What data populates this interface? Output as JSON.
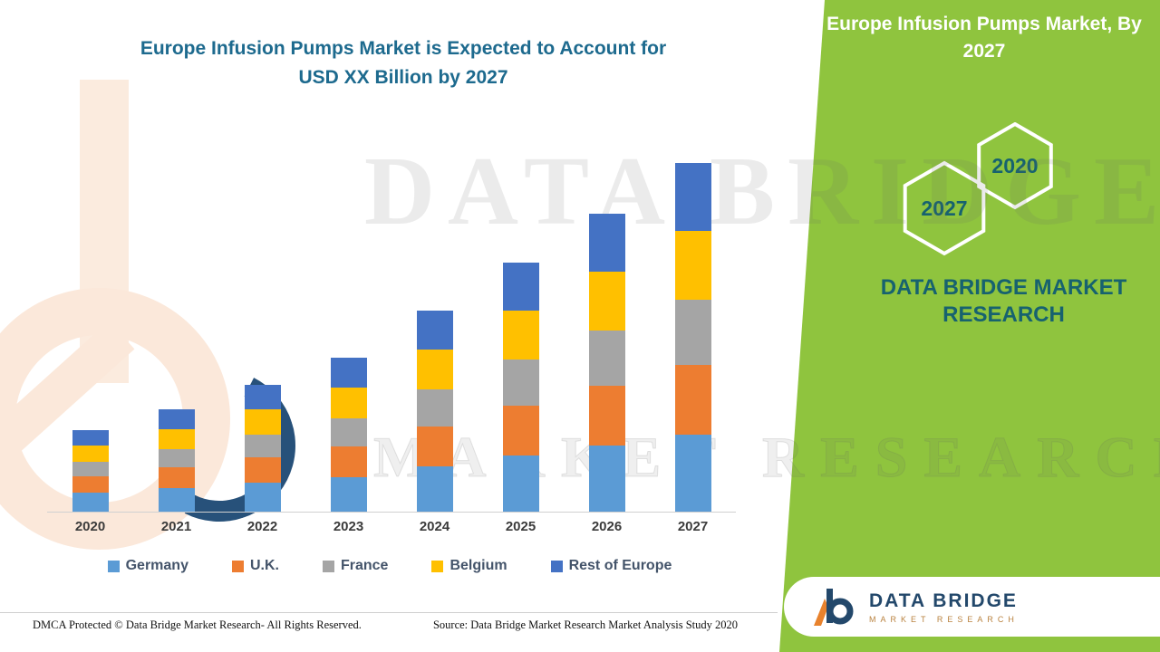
{
  "main": {
    "title": "Europe Infusion Pumps Market is Expected to Account for USD XX Billion by 2027"
  },
  "chart_data": {
    "type": "bar",
    "stacked": true,
    "title": "Europe Infusion Pumps Market is Expected to Account for USD XX Billion by 2027",
    "categories": [
      "2020",
      "2021",
      "2022",
      "2023",
      "2024",
      "2025",
      "2026",
      "2027"
    ],
    "series": [
      {
        "name": "Germany",
        "color": "#5B9BD5",
        "values": [
          0.21,
          0.26,
          0.32,
          0.38,
          0.5,
          0.62,
          0.73,
          0.85
        ]
      },
      {
        "name": "U.K.",
        "color": "#ED7D31",
        "values": [
          0.18,
          0.23,
          0.28,
          0.34,
          0.44,
          0.55,
          0.66,
          0.77
        ]
      },
      {
        "name": "France",
        "color": "#A5A5A5",
        "values": [
          0.16,
          0.2,
          0.25,
          0.31,
          0.41,
          0.51,
          0.61,
          0.72
        ]
      },
      {
        "name": "Belgium",
        "color": "#FFC000",
        "values": [
          0.18,
          0.22,
          0.28,
          0.34,
          0.44,
          0.54,
          0.65,
          0.76
        ]
      },
      {
        "name": "Rest of Europe",
        "color": "#4472C4",
        "values": [
          0.17,
          0.22,
          0.27,
          0.33,
          0.43,
          0.53,
          0.64,
          0.75
        ]
      }
    ],
    "xlabel": "",
    "ylabel": "",
    "ylim": [
      0,
      3.9
    ],
    "y_axis_visible": false,
    "value_labels_visible": false,
    "values_are_estimates": true,
    "units": "relative index (actual USD values masked as XX in source)",
    "legend_position": "bottom",
    "grid": false
  },
  "watermark": {
    "line1": "DATA BRIDGE",
    "line2": "MARKET RESEARCH"
  },
  "side_panel": {
    "title": "Europe Infusion Pumps Market, By 2027",
    "hexagons": [
      {
        "label": "2027"
      },
      {
        "label": "2020"
      }
    ],
    "brand": "DATA BRIDGE MARKET RESEARCH",
    "background_color": "#8FC43E",
    "accent_text_color": "#17626F"
  },
  "logo_card": {
    "brand_name": "DATA BRIDGE",
    "brand_sub": "MARKET RESEARCH"
  },
  "footer": {
    "dmca": "DMCA Protected © Data Bridge Market Research- All Rights Reserved.",
    "source": "Source: Data Bridge Market Research Market Analysis Study 2020"
  }
}
